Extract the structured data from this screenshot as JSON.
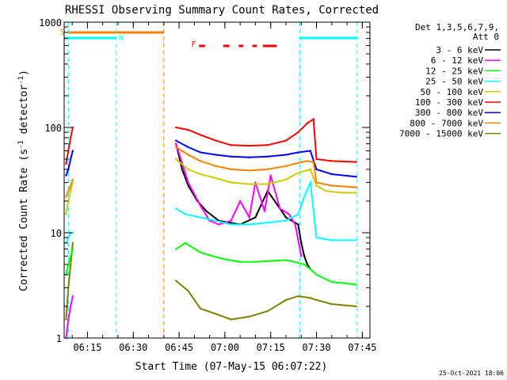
{
  "chart_data": {
    "type": "line",
    "title": "RHESSI Observing Summary Count Rates, Corrected",
    "xlabel": "Start Time (07-May-15 06:07:22)",
    "ylabel": "Corrected Count Rate (s",
    "ylabel_sup1": "-1",
    "ylabel_mid": " detector",
    "ylabel_sup2": "-1",
    "ylabel_end": ")",
    "y_scale": "log",
    "ylim": [
      1,
      1000
    ],
    "xlim": [
      "06:07:22",
      "07:47:30"
    ],
    "y_ticks": [
      "1",
      "10",
      "100",
      "1000"
    ],
    "x_ticks": [
      "06:15",
      "06:30",
      "06:45",
      "07:00",
      "07:15",
      "07:30",
      "07:45"
    ],
    "footer": "25-Oct-2021 18:06",
    "legend": {
      "header1": "Det 1,3,5,6,7,9,",
      "header2": "Att 0",
      "entries": [
        {
          "label": "3 - 6 keV",
          "color": "#000000"
        },
        {
          "label": "6 - 12 keV",
          "color": "#ff00ff"
        },
        {
          "label": "12 - 25 keV",
          "color": "#00ff00"
        },
        {
          "label": "25 - 50 keV",
          "color": "#00ffff"
        },
        {
          "label": "50 - 100 keV",
          "color": "#cccc00"
        },
        {
          "label": "100 - 300 keV",
          "color": "#ff0000"
        },
        {
          "label": "300 - 800 keV",
          "color": "#0000ff"
        },
        {
          "label": "800 - 7000 keV",
          "color": "#ff8000"
        },
        {
          "label": "7000 - 15000 keV",
          "color": "#808000"
        }
      ]
    },
    "flags": [
      {
        "label": "S",
        "color": "#ff8000"
      },
      {
        "label": "N",
        "color": "#00ffff"
      },
      {
        "label": "F",
        "color": "#ff0000"
      }
    ],
    "series": [
      {
        "name": "3 - 6 keV",
        "color": "#000000",
        "x": [
          "06:44:00",
          "06:46:00",
          "06:48:00",
          "06:51:00",
          "06:54:00",
          "06:58:00",
          "07:05:00",
          "07:10:00",
          "07:14:00",
          "07:20:00",
          "07:24:00",
          "07:25:00",
          "07:26:00",
          "07:27:00",
          "07:28:00"
        ],
        "y": [
          70,
          40,
          28,
          20,
          16,
          13,
          12,
          14,
          25,
          14,
          12,
          8,
          6,
          5,
          4.5
        ]
      },
      {
        "name": "6 - 12 keV",
        "color": "#ff00ff",
        "x": [
          "06:44:00",
          "06:48:00",
          "06:52:00",
          "06:55:00",
          "06:58:00",
          "07:02:00",
          "07:05:00",
          "07:08:00",
          "07:10:00",
          "07:13:00",
          "07:15:00",
          "07:18:00",
          "07:21:00",
          "07:23:00",
          "07:25:00"
        ],
        "y": [
          70,
          30,
          18,
          13,
          12,
          13,
          20,
          14,
          30,
          16,
          35,
          17,
          15,
          12,
          6
        ]
      },
      {
        "name": "12 - 25 keV",
        "color": "#00ff00",
        "x": [
          "06:44:00",
          "06:47:00",
          "06:52:00",
          "06:56:00",
          "07:00:00",
          "07:05:00",
          "07:10:00",
          "07:15:00",
          "07:20:00",
          "07:24:00",
          "07:26:00",
          "07:28:00",
          "07:30:00",
          "07:35:00",
          "07:40:00",
          "07:43:00"
        ],
        "y": [
          7,
          8,
          6.5,
          6,
          5.6,
          5.3,
          5.3,
          5.4,
          5.5,
          5.2,
          5,
          4.5,
          4,
          3.4,
          3.3,
          3.2
        ]
      },
      {
        "name": "25 - 50 keV",
        "color": "#00ffff",
        "x": [
          "06:44:00",
          "06:47:00",
          "06:52:00",
          "06:57:00",
          "07:02:00",
          "07:08:00",
          "07:14:00",
          "07:20:00",
          "07:24:00",
          "07:26:00",
          "07:28:00",
          "07:30:00",
          "07:35:00",
          "07:43:00"
        ],
        "y": [
          17,
          15,
          14,
          13,
          12,
          12,
          12.5,
          13,
          15,
          22,
          30,
          9,
          8.5,
          8.5
        ]
      },
      {
        "name": "50 - 100 keV",
        "color": "#cccc00",
        "x": [
          "06:44:00",
          "06:48:00",
          "06:52:00",
          "06:57:00",
          "07:02:00",
          "07:08:00",
          "07:14:00",
          "07:20:00",
          "07:24:00",
          "07:28:00",
          "07:30:00",
          "07:33:00",
          "07:38:00",
          "07:43:00"
        ],
        "y": [
          50,
          40,
          36,
          33,
          30,
          29,
          29,
          32,
          37,
          40,
          28,
          25,
          24,
          24
        ]
      },
      {
        "name": "100 - 300 keV",
        "color": "#ff0000",
        "x": [
          "06:44:00",
          "06:48:00",
          "06:52:00",
          "06:57:00",
          "07:02:00",
          "07:08:00",
          "07:14:00",
          "07:20:00",
          "07:24:00",
          "07:27:00",
          "07:29:00",
          "07:30:00",
          "07:35:00",
          "07:43:00"
        ],
        "y": [
          100,
          95,
          85,
          75,
          68,
          67,
          68,
          75,
          90,
          110,
          120,
          50,
          48,
          47
        ]
      },
      {
        "name": "300 - 800 keV",
        "color": "#0000ff",
        "x": [
          "06:44:00",
          "06:48:00",
          "06:52:00",
          "06:57:00",
          "07:02:00",
          "07:08:00",
          "07:14:00",
          "07:20:00",
          "07:24:00",
          "07:28:00",
          "07:30:00",
          "07:35:00",
          "07:43:00"
        ],
        "y": [
          75,
          65,
          58,
          55,
          53,
          52,
          53,
          55,
          58,
          60,
          40,
          36,
          34
        ]
      },
      {
        "name": "800 - 7000 keV",
        "color": "#ff8000",
        "x": [
          "06:44:00",
          "06:48:00",
          "06:52:00",
          "06:57:00",
          "07:02:00",
          "07:08:00",
          "07:14:00",
          "07:20:00",
          "07:24:00",
          "07:27:00",
          "07:29:00",
          "07:30:00",
          "07:35:00",
          "07:43:00"
        ],
        "y": [
          65,
          55,
          48,
          43,
          40,
          39,
          40,
          43,
          46,
          48,
          47,
          30,
          28,
          27
        ]
      },
      {
        "name": "7000 - 15000 keV",
        "color": "#808000",
        "x": [
          "06:44:00",
          "06:48:00",
          "06:52:00",
          "06:57:00",
          "07:02:00",
          "07:08:00",
          "07:14:00",
          "07:20:00",
          "07:24:00",
          "07:28:00",
          "07:30:00",
          "07:35:00",
          "07:43:00"
        ],
        "y": [
          3.5,
          2.8,
          1.9,
          1.7,
          1.5,
          1.6,
          1.8,
          2.3,
          2.5,
          2.4,
          2.3,
          2.1,
          2.0
        ]
      }
    ],
    "early_segment": {
      "x": [
        "06:08:00",
        "06:08:45",
        "06:09:30",
        "06:10:10"
      ],
      "series": [
        {
          "color": "#ff00ff",
          "y": [
            1.0,
            1.5,
            2.0,
            2.5
          ]
        },
        {
          "color": "#00ffff",
          "y": [
            8,
            9,
            10,
            10
          ]
        },
        {
          "color": "#ff0000",
          "y": [
            45,
            60,
            80,
            100
          ]
        },
        {
          "color": "#0000ff",
          "y": [
            35,
            40,
            50,
            60
          ]
        },
        {
          "color": "#ff8000",
          "y": [
            22,
            25,
            28,
            32
          ]
        },
        {
          "color": "#cccc00",
          "y": [
            15,
            20,
            25,
            30
          ]
        },
        {
          "color": "#808000",
          "y": [
            1.5,
            3.0,
            5.0,
            8.0
          ]
        },
        {
          "color": "#00ff00",
          "y": [
            4,
            5,
            6,
            7
          ]
        }
      ]
    }
  }
}
